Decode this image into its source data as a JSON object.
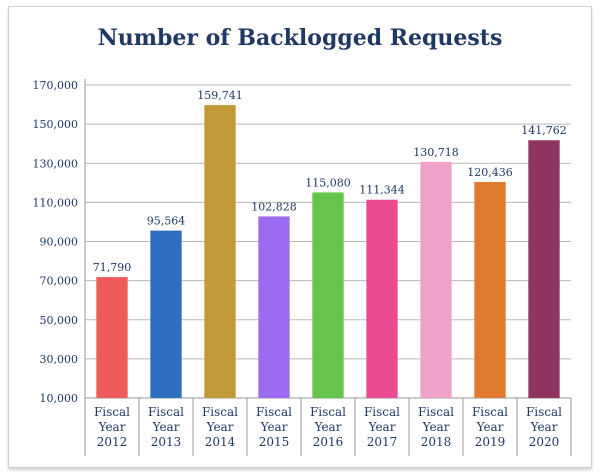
{
  "chart_data": {
    "type": "bar",
    "title": "Number of Backlogged Requests",
    "xlabel": "",
    "ylabel": "",
    "ylim": [
      10000,
      170000
    ],
    "yticks": [
      10000,
      30000,
      50000,
      70000,
      90000,
      110000,
      130000,
      150000,
      170000
    ],
    "ytick_labels": [
      "10,000",
      "30,000",
      "50,000",
      "70,000",
      "90,000",
      "110,000",
      "130,000",
      "150,000",
      "170,000"
    ],
    "grid": true,
    "categories": [
      [
        "Fiscal",
        "Year",
        "2012"
      ],
      [
        "Fiscal",
        "Year",
        "2013"
      ],
      [
        "Fiscal",
        "Year",
        "2014"
      ],
      [
        "Fiscal",
        "Year",
        "2015"
      ],
      [
        "Fiscal",
        "Year",
        "2016"
      ],
      [
        "Fiscal",
        "Year",
        "2017"
      ],
      [
        "Fiscal",
        "Year",
        "2018"
      ],
      [
        "Fiscal",
        "Year",
        "2019"
      ],
      [
        "Fiscal",
        "Year",
        "2020"
      ]
    ],
    "values": [
      71790,
      95564,
      159741,
      102828,
      115080,
      111344,
      130718,
      120436,
      141762
    ],
    "value_labels": [
      "71,790",
      "95,564",
      "159,741",
      "102,828",
      "115,080",
      "111,344",
      "130,718",
      "120,436",
      "141,762"
    ],
    "colors": [
      "#ef5b5b",
      "#2f6ebe",
      "#c39a3a",
      "#9b6cf0",
      "#67c54e",
      "#ea4b93",
      "#f0a3c8",
      "#e07a2e",
      "#8e3460"
    ]
  }
}
